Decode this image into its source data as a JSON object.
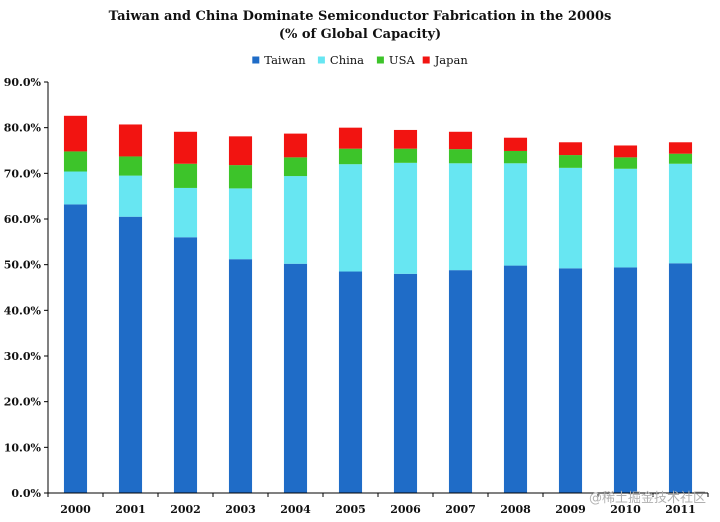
{
  "chart_data": {
    "type": "bar",
    "stacked": true,
    "title": "Taiwan and China Dominate Semiconductor Fabrication in the 2000s",
    "subtitle": "(% of Global Capacity)",
    "categories": [
      "2000",
      "2001",
      "2002",
      "2003",
      "2004",
      "2005",
      "2006",
      "2007",
      "2008",
      "2009",
      "2010",
      "2011"
    ],
    "series": [
      {
        "name": "Taiwan",
        "color": "#1f6cc7",
        "values": [
          63.2,
          60.5,
          56.0,
          51.2,
          50.2,
          48.5,
          48.0,
          48.8,
          49.8,
          49.2,
          49.4,
          50.3
        ]
      },
      {
        "name": "China",
        "color": "#67e6f2",
        "values": [
          7.2,
          9.0,
          10.8,
          15.5,
          19.2,
          23.5,
          24.3,
          23.4,
          22.4,
          22.0,
          21.6,
          21.8
        ]
      },
      {
        "name": "USA",
        "color": "#3dc42a",
        "values": [
          4.4,
          4.2,
          5.3,
          5.1,
          4.1,
          3.4,
          3.1,
          3.1,
          2.7,
          2.8,
          2.5,
          2.2
        ]
      },
      {
        "name": "Japan",
        "color": "#f21411",
        "values": [
          7.8,
          7.0,
          7.0,
          6.3,
          5.2,
          4.6,
          4.1,
          3.8,
          2.9,
          2.8,
          2.6,
          2.5
        ]
      }
    ],
    "ylim": [
      0,
      90
    ],
    "ytick_step": 10,
    "ytick_labels": [
      "0.0%",
      "10.0%",
      "20.0%",
      "30.0%",
      "40.0%",
      "50.0%",
      "60.0%",
      "70.0%",
      "80.0%",
      "90.0%"
    ],
    "xlabel": "",
    "ylabel": "",
    "grid": false,
    "legend_position": "top-center"
  },
  "watermark": "@稀土掘金技术社区"
}
